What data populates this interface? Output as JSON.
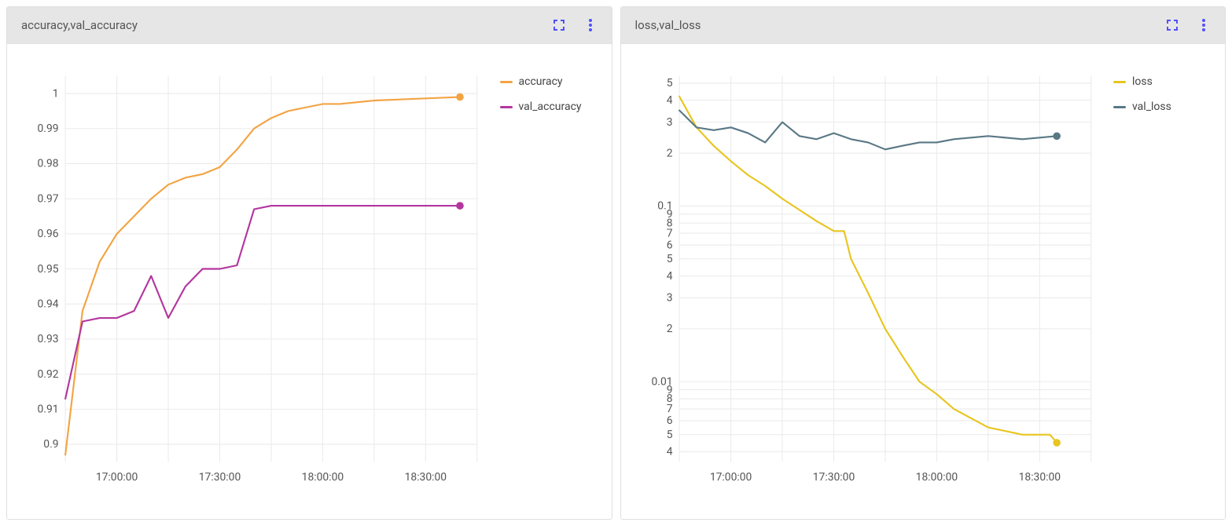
{
  "panels": [
    {
      "title": "accuracy,val_accuracy",
      "chart": {
        "type": "line",
        "yscale": "linear",
        "ylim": [
          0.895,
          1.005
        ],
        "ytick_vals": [
          0.9,
          0.91,
          0.92,
          0.93,
          0.94,
          0.95,
          0.96,
          0.97,
          0.98,
          0.99,
          1.0
        ],
        "ytick_labels": [
          "0.9",
          "0.91",
          "0.92",
          "0.93",
          "0.94",
          "0.95",
          "0.96",
          "0.97",
          "0.98",
          "0.99",
          "1"
        ],
        "xlim": [
          0,
          120
        ],
        "xtick_vals": [
          15,
          45,
          75,
          105
        ],
        "xtick_labels": [
          "17:00:00",
          "17:30:00",
          "18:00:00",
          "18:30:00"
        ],
        "x_gridlines": [
          0,
          15,
          30,
          45,
          60,
          75,
          90,
          105,
          120
        ],
        "background_color": "#ffffff",
        "grid_color": "#ebebeb",
        "tick_fontsize": 13,
        "tick_color": "#555555",
        "line_width": 2,
        "end_marker_radius": 4.5,
        "series": [
          {
            "name": "accuracy",
            "color": "#f2a444",
            "x": [
              0,
              5,
              10,
              15,
              20,
              25,
              30,
              35,
              40,
              45,
              50,
              55,
              60,
              65,
              70,
              75,
              80,
              90,
              115
            ],
            "y": [
              0.897,
              0.938,
              0.952,
              0.96,
              0.965,
              0.97,
              0.974,
              0.976,
              0.977,
              0.979,
              0.984,
              0.99,
              0.993,
              0.995,
              0.996,
              0.997,
              0.997,
              0.998,
              0.999
            ]
          },
          {
            "name": "val_accuracy",
            "color": "#b3369e",
            "x": [
              0,
              5,
              10,
              15,
              20,
              25,
              30,
              35,
              40,
              45,
              50,
              55,
              60,
              65,
              70,
              75,
              80,
              90,
              115
            ],
            "y": [
              0.913,
              0.935,
              0.936,
              0.936,
              0.938,
              0.948,
              0.936,
              0.945,
              0.95,
              0.95,
              0.951,
              0.967,
              0.968,
              0.968,
              0.968,
              0.968,
              0.968,
              0.968,
              0.968
            ]
          }
        ]
      }
    },
    {
      "title": "loss,val_loss",
      "chart": {
        "type": "line",
        "yscale": "log",
        "ylim_log": [
          0.0035,
          0.55
        ],
        "ytick_vals": [
          0.004,
          0.005,
          0.006,
          0.007,
          0.008,
          0.009,
          0.01,
          0.02,
          0.03,
          0.04,
          0.05,
          0.06,
          0.07,
          0.08,
          0.09,
          0.1,
          0.2,
          0.3,
          0.4,
          0.5
        ],
        "ytick_labels": [
          "4",
          "5",
          "6",
          "7",
          "8",
          "9",
          "0.01",
          "2",
          "3",
          "4",
          "5",
          "6",
          "7",
          "8",
          "9",
          "0.1",
          "2",
          "3",
          "4",
          "5"
        ],
        "xlim": [
          0,
          120
        ],
        "xtick_vals": [
          15,
          45,
          75,
          90,
          105
        ],
        "xtick_labels": [
          "17:00:00",
          "17:30:00",
          "18:00:00",
          "",
          "18:30:00"
        ],
        "x_gridlines": [
          0,
          15,
          30,
          45,
          60,
          75,
          90,
          105,
          120
        ],
        "background_color": "#ffffff",
        "grid_color": "#ebebeb",
        "tick_fontsize": 13,
        "tick_color": "#555555",
        "line_width": 2,
        "end_marker_radius": 4.5,
        "series": [
          {
            "name": "loss",
            "color": "#e8c520",
            "x": [
              0,
              5,
              10,
              15,
              20,
              25,
              30,
              35,
              40,
              45,
              48,
              50,
              55,
              60,
              65,
              70,
              75,
              80,
              90,
              100,
              108,
              110
            ],
            "y": [
              0.42,
              0.28,
              0.22,
              0.18,
              0.15,
              0.13,
              0.11,
              0.095,
              0.082,
              0.072,
              0.072,
              0.05,
              0.032,
              0.02,
              0.014,
              0.01,
              0.0085,
              0.007,
              0.0055,
              0.005,
              0.005,
              0.0045
            ]
          },
          {
            "name": "val_loss",
            "color": "#5a7886",
            "x": [
              0,
              5,
              10,
              15,
              20,
              25,
              30,
              35,
              40,
              45,
              50,
              55,
              60,
              65,
              70,
              75,
              80,
              90,
              100,
              110
            ],
            "y": [
              0.35,
              0.28,
              0.27,
              0.28,
              0.26,
              0.23,
              0.3,
              0.25,
              0.24,
              0.26,
              0.24,
              0.23,
              0.21,
              0.22,
              0.23,
              0.23,
              0.24,
              0.25,
              0.24,
              0.25
            ]
          }
        ]
      }
    }
  ],
  "icons": {
    "fullscreen_color": "#5050ff",
    "menu_color": "#5050ff"
  }
}
